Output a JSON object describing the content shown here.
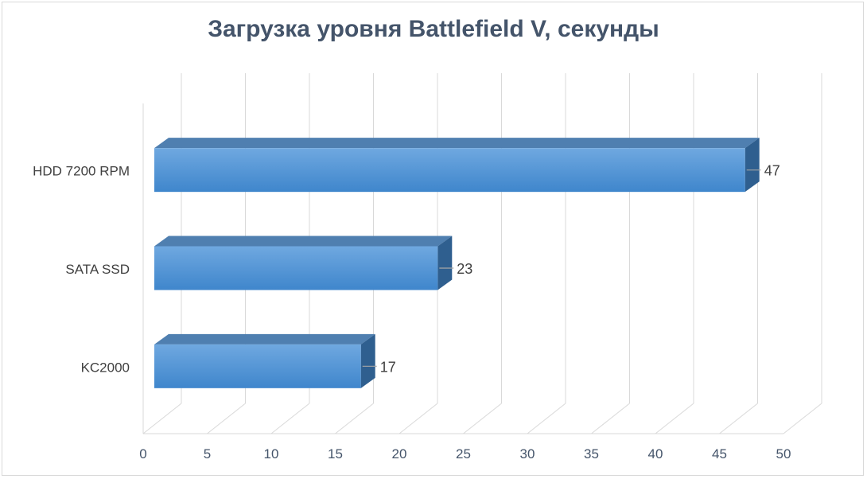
{
  "chart_data": {
    "type": "bar",
    "orientation": "horizontal",
    "style": "3d",
    "title": "Загрузка уровня Battlefield V, секунды",
    "categories": [
      "HDD 7200 RPM",
      "SATA SSD",
      "KC2000"
    ],
    "values": [
      47,
      23,
      17
    ],
    "data_labels": [
      "47",
      "23",
      "17"
    ],
    "xlim": [
      0,
      50
    ],
    "xticks": [
      0,
      5,
      10,
      15,
      20,
      25,
      30,
      35,
      40,
      45,
      50
    ],
    "xtick_labels": [
      "0",
      "5",
      "10",
      "15",
      "20",
      "25",
      "30",
      "35",
      "40",
      "45",
      "50"
    ],
    "grid": true,
    "legend": "none",
    "colors": {
      "bar_front": "#5b9bd5",
      "bar_top": "#4f7fb0",
      "bar_side": "#2f5f8f",
      "title": "#44546a",
      "tick_text": "#44546a",
      "label_text": "#404040",
      "grid": "#d9d9d9"
    }
  }
}
